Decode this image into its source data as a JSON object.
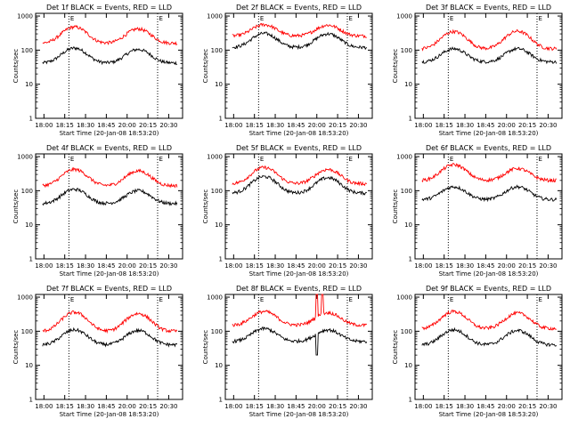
{
  "title_template": "Det {det} BLACK = Events, RED = LLD",
  "colors": {
    "events": "#000000",
    "lld": "#ff0000",
    "frame": "#000000",
    "marker": "#000000"
  },
  "shared": {
    "ylabel": "Counts/sec",
    "xlabel": "Start Time (20-Jan-08 18:53:20)",
    "x_ticks": [
      "18:00",
      "18:15",
      "18:30",
      "18:45",
      "20:00",
      "20:15",
      "20:30"
    ],
    "y_ticks": [
      "1",
      "10",
      "100",
      "1000"
    ],
    "marker_label": "E",
    "xlim_minutes": [
      -6,
      100
    ],
    "ylim": [
      1,
      1200
    ]
  },
  "chart_data": [
    {
      "type": "line",
      "title": "Det 1f BLACK = Events, RED = LLD",
      "det": "1f",
      "series": [
        {
          "name": "Events",
          "color": "#000000",
          "base": 42,
          "peaks": [
            {
              "t": 22,
              "v": 115
            },
            {
              "t": 68,
              "v": 105
            }
          ]
        },
        {
          "name": "LLD",
          "color": "#ff0000",
          "base": 160,
          "peaks": [
            {
              "t": 22,
              "v": 480
            },
            {
              "t": 68,
              "v": 420
            }
          ]
        }
      ],
      "markers": [
        {
          "t": 18,
          "label": "E"
        },
        {
          "t": 82,
          "label": "E"
        }
      ]
    },
    {
      "type": "line",
      "title": "Det 2f BLACK = Events, RED = LLD",
      "det": "2f",
      "series": [
        {
          "name": "Events",
          "color": "#000000",
          "base": 120,
          "peaks": [
            {
              "t": 22,
              "v": 310
            },
            {
              "t": 68,
              "v": 300
            }
          ]
        },
        {
          "name": "LLD",
          "color": "#ff0000",
          "base": 260,
          "peaks": [
            {
              "t": 22,
              "v": 560
            },
            {
              "t": 68,
              "v": 540
            }
          ]
        }
      ],
      "markers": [
        {
          "t": 18,
          "label": "E"
        },
        {
          "t": 82,
          "label": "E"
        }
      ]
    },
    {
      "type": "line",
      "title": "Det 3f BLACK = Events, RED = LLD",
      "det": "3f",
      "series": [
        {
          "name": "Events",
          "color": "#000000",
          "base": 45,
          "peaks": [
            {
              "t": 22,
              "v": 110
            },
            {
              "t": 68,
              "v": 110
            }
          ]
        },
        {
          "name": "LLD",
          "color": "#ff0000",
          "base": 110,
          "peaks": [
            {
              "t": 22,
              "v": 350
            },
            {
              "t": 68,
              "v": 360
            }
          ]
        }
      ],
      "markers": [
        {
          "t": 18,
          "label": "E"
        },
        {
          "t": 82,
          "label": "E"
        }
      ]
    },
    {
      "type": "line",
      "title": "Det 4f BLACK = Events, RED = LLD",
      "det": "4f",
      "series": [
        {
          "name": "Events",
          "color": "#000000",
          "base": 42,
          "peaks": [
            {
              "t": 22,
              "v": 110
            },
            {
              "t": 68,
              "v": 100
            }
          ]
        },
        {
          "name": "LLD",
          "color": "#ff0000",
          "base": 140,
          "peaks": [
            {
              "t": 22,
              "v": 420
            },
            {
              "t": 68,
              "v": 380
            }
          ]
        }
      ],
      "markers": [
        {
          "t": 18,
          "label": "E"
        },
        {
          "t": 82,
          "label": "E"
        }
      ]
    },
    {
      "type": "line",
      "title": "Det 5f BLACK = Events, RED = LLD",
      "det": "5f",
      "series": [
        {
          "name": "Events",
          "color": "#000000",
          "base": 85,
          "peaks": [
            {
              "t": 22,
              "v": 260
            },
            {
              "t": 68,
              "v": 240
            }
          ]
        },
        {
          "name": "LLD",
          "color": "#ff0000",
          "base": 160,
          "peaks": [
            {
              "t": 22,
              "v": 480
            },
            {
              "t": 68,
              "v": 420
            }
          ]
        }
      ],
      "markers": [
        {
          "t": 18,
          "label": "E"
        },
        {
          "t": 82,
          "label": "E"
        }
      ]
    },
    {
      "type": "line",
      "title": "Det 6f BLACK = Events, RED = LLD",
      "det": "6f",
      "series": [
        {
          "name": "Events",
          "color": "#000000",
          "base": 55,
          "peaks": [
            {
              "t": 22,
              "v": 130
            },
            {
              "t": 68,
              "v": 130
            }
          ]
        },
        {
          "name": "LLD",
          "color": "#ff0000",
          "base": 200,
          "peaks": [
            {
              "t": 22,
              "v": 580
            },
            {
              "t": 68,
              "v": 450
            }
          ]
        }
      ],
      "markers": [
        {
          "t": 18,
          "label": "E"
        },
        {
          "t": 82,
          "label": "E"
        }
      ]
    },
    {
      "type": "line",
      "title": "Det 7f BLACK = Events, RED = LLD",
      "det": "7f",
      "series": [
        {
          "name": "Events",
          "color": "#000000",
          "base": 40,
          "peaks": [
            {
              "t": 22,
              "v": 110
            },
            {
              "t": 68,
              "v": 105
            }
          ]
        },
        {
          "name": "LLD",
          "color": "#ff0000",
          "base": 100,
          "peaks": [
            {
              "t": 22,
              "v": 360
            },
            {
              "t": 68,
              "v": 330
            }
          ]
        }
      ],
      "markers": [
        {
          "t": 18,
          "label": "E"
        },
        {
          "t": 82,
          "label": "E"
        }
      ]
    },
    {
      "type": "line",
      "title": "Det 8f BLACK = Events, RED = LLD",
      "det": "8f",
      "series": [
        {
          "name": "Events",
          "color": "#000000",
          "base": 50,
          "peaks": [
            {
              "t": 22,
              "v": 120
            },
            {
              "t": 68,
              "v": 110
            }
          ]
        },
        {
          "name": "LLD",
          "color": "#ff0000",
          "base": 150,
          "peaks": [
            {
              "t": 22,
              "v": 380
            },
            {
              "t": 68,
              "v": 350
            }
          ]
        }
      ],
      "markers": [
        {
          "t": 18,
          "label": "E"
        },
        {
          "t": 82,
          "label": "E"
        }
      ],
      "spike": {
        "t_start": 60,
        "t_end": 64
      }
    },
    {
      "type": "line",
      "title": "Det 9f BLACK = Events, RED = LLD",
      "det": "9f",
      "series": [
        {
          "name": "Events",
          "color": "#000000",
          "base": 40,
          "peaks": [
            {
              "t": 22,
              "v": 110
            },
            {
              "t": 68,
              "v": 105
            }
          ]
        },
        {
          "name": "LLD",
          "color": "#ff0000",
          "base": 120,
          "peaks": [
            {
              "t": 22,
              "v": 380
            },
            {
              "t": 68,
              "v": 340
            }
          ]
        }
      ],
      "markers": [
        {
          "t": 18,
          "label": "E"
        },
        {
          "t": 82,
          "label": "E"
        }
      ]
    }
  ]
}
